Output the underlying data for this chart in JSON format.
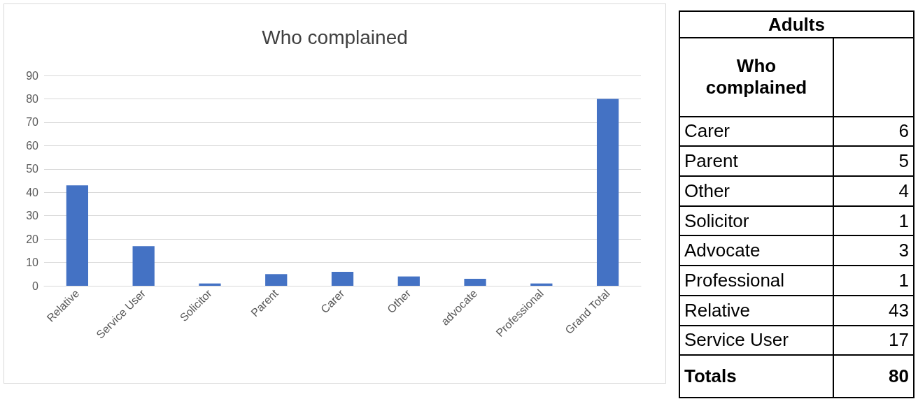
{
  "chart_data": [
    {
      "type": "bar",
      "title": "Who complained",
      "categories": [
        "Relative",
        "Service User",
        "Solicitor",
        "Parent",
        "Carer",
        "Other",
        "advocate",
        "Professional",
        "Grand Total"
      ],
      "values": [
        43,
        17,
        1,
        5,
        6,
        4,
        3,
        1,
        80
      ],
      "color": "#4472c4",
      "ylim": [
        0,
        90
      ],
      "yticks": [
        0,
        10,
        20,
        30,
        40,
        50,
        60,
        70,
        80,
        90
      ],
      "grid": "y"
    },
    {
      "type": "other",
      "title": "Adults",
      "subtitle": "Who complained",
      "categories": [
        "Carer",
        "Parent",
        "Other",
        "Solicitor",
        "Advocate",
        "Professional",
        "Relative",
        "Service User",
        "Totals"
      ],
      "values": [
        6,
        5,
        4,
        1,
        3,
        1,
        43,
        17,
        80
      ],
      "data_labels": true
    }
  ]
}
